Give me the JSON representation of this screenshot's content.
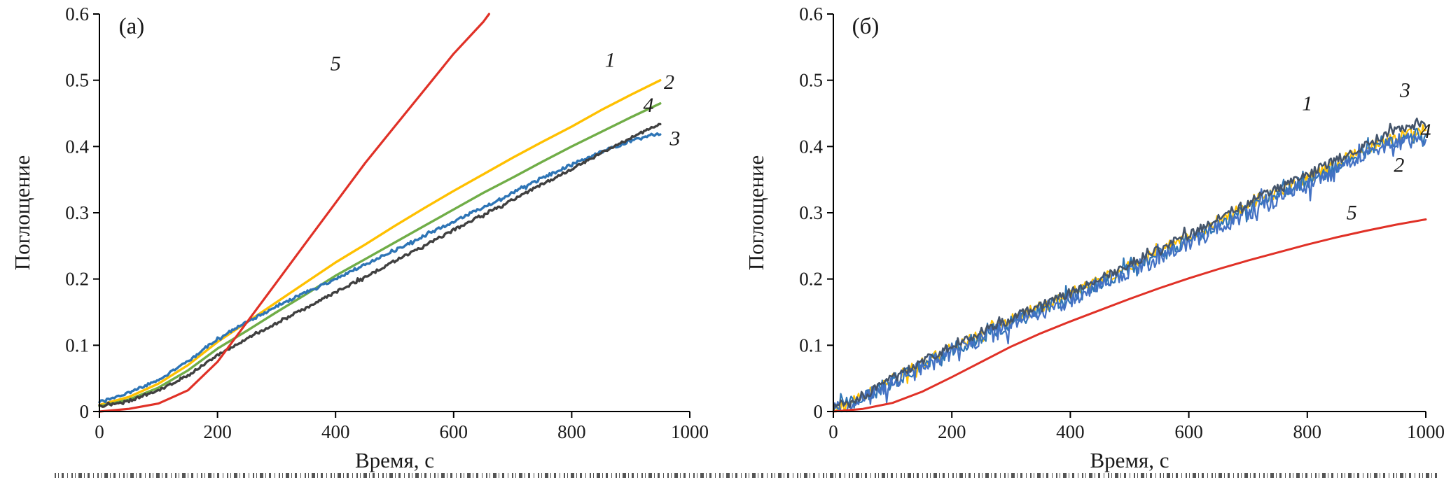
{
  "figure": {
    "background": "#ffffff",
    "axis_color": "#000000",
    "text_color": "#1a1a1a"
  },
  "chart_data": [
    {
      "type": "line",
      "panel_label": "(а)",
      "xlabel": "Время, с",
      "ylabel": "Поглощение",
      "xlim": [
        0,
        1000
      ],
      "ylim": [
        0,
        0.6
      ],
      "grid": false,
      "legend": "none (curves labeled inline with italic numbers)",
      "xticks": [
        0,
        200,
        400,
        600,
        800,
        1000
      ],
      "xtick_labels": [
        "0",
        "200",
        "400",
        "600",
        "800",
        "1000"
      ],
      "yticks": [
        0,
        0.1,
        0.2,
        0.3,
        0.4,
        0.5,
        0.6
      ],
      "ytick_labels": [
        "0",
        "0.1",
        "0.2",
        "0.3",
        "0.4",
        "0.5",
        "0.6"
      ],
      "series": [
        {
          "name": "1",
          "color": "#FFC000",
          "stroke_width": 3.4,
          "noise": 0,
          "x": [
            0,
            50,
            100,
            150,
            200,
            250,
            300,
            350,
            400,
            450,
            500,
            550,
            600,
            650,
            700,
            750,
            800,
            850,
            900,
            950
          ],
          "y": [
            0.01,
            0.022,
            0.042,
            0.07,
            0.105,
            0.135,
            0.165,
            0.195,
            0.225,
            0.252,
            0.28,
            0.307,
            0.333,
            0.358,
            0.383,
            0.407,
            0.43,
            0.455,
            0.478,
            0.5
          ]
        },
        {
          "name": "2",
          "color": "#70AD47",
          "stroke_width": 3.4,
          "noise": 0,
          "x": [
            0,
            50,
            100,
            150,
            200,
            250,
            300,
            350,
            400,
            450,
            500,
            550,
            600,
            650,
            700,
            750,
            800,
            850,
            900,
            950
          ],
          "y": [
            0.008,
            0.018,
            0.036,
            0.062,
            0.095,
            0.122,
            0.15,
            0.177,
            0.205,
            0.23,
            0.255,
            0.28,
            0.305,
            0.33,
            0.353,
            0.377,
            0.4,
            0.422,
            0.444,
            0.465
          ]
        },
        {
          "name": "3",
          "color": "#2E75B6",
          "stroke_width": 3.4,
          "noise": 0.002,
          "x": [
            0,
            50,
            100,
            150,
            200,
            250,
            300,
            350,
            400,
            450,
            500,
            550,
            600,
            650,
            700,
            750,
            800,
            850,
            900,
            950
          ],
          "y": [
            0.015,
            0.028,
            0.048,
            0.075,
            0.11,
            0.135,
            0.158,
            0.18,
            0.2,
            0.222,
            0.243,
            0.265,
            0.287,
            0.308,
            0.33,
            0.352,
            0.373,
            0.392,
            0.408,
            0.42
          ]
        },
        {
          "name": "4",
          "color": "#404040",
          "stroke_width": 3.4,
          "noise": 0.002,
          "x": [
            0,
            50,
            100,
            150,
            200,
            250,
            300,
            350,
            400,
            450,
            500,
            550,
            600,
            650,
            700,
            750,
            800,
            850,
            900,
            950
          ],
          "y": [
            0.008,
            0.016,
            0.032,
            0.055,
            0.085,
            0.11,
            0.133,
            0.156,
            0.18,
            0.203,
            0.227,
            0.25,
            0.274,
            0.297,
            0.32,
            0.343,
            0.366,
            0.39,
            0.413,
            0.435
          ]
        },
        {
          "name": "5",
          "color": "#E03127",
          "stroke_width": 3.2,
          "noise": 0,
          "x": [
            0,
            50,
            100,
            150,
            200,
            250,
            300,
            350,
            400,
            450,
            500,
            550,
            600,
            650,
            660
          ],
          "y": [
            0.0,
            0.004,
            0.012,
            0.032,
            0.075,
            0.135,
            0.195,
            0.255,
            0.315,
            0.375,
            0.43,
            0.485,
            0.54,
            0.588,
            0.6
          ]
        }
      ],
      "annotations": [
        {
          "text": "5",
          "x": 400,
          "y": 0.515
        },
        {
          "text": "1",
          "x": 865,
          "y": 0.52
        },
        {
          "text": "2",
          "x": 965,
          "y": 0.487
        },
        {
          "text": "4",
          "x": 930,
          "y": 0.452
        },
        {
          "text": "3",
          "x": 975,
          "y": 0.402
        }
      ]
    },
    {
      "type": "line",
      "panel_label": "(б)",
      "xlabel": "Время, с",
      "ylabel": "Поглощение",
      "xlim": [
        0,
        1000
      ],
      "ylim": [
        0,
        0.6
      ],
      "grid": false,
      "legend": "none (curves labeled inline with italic numbers)",
      "xticks": [
        0,
        200,
        400,
        600,
        800,
        1000
      ],
      "xtick_labels": [
        "0",
        "200",
        "400",
        "600",
        "800",
        "1000"
      ],
      "yticks": [
        0,
        0.1,
        0.2,
        0.3,
        0.4,
        0.5,
        0.6
      ],
      "ytick_labels": [
        "0",
        "0.1",
        "0.2",
        "0.3",
        "0.4",
        "0.5",
        "0.6"
      ],
      "series": [
        {
          "name": "1",
          "color": "#FFC000",
          "stroke_width": 2.2,
          "noise": 0.009,
          "x": [
            0,
            50,
            100,
            150,
            200,
            250,
            300,
            350,
            400,
            450,
            500,
            550,
            600,
            650,
            700,
            750,
            800,
            850,
            900,
            950,
            1000
          ],
          "y": [
            0.005,
            0.022,
            0.048,
            0.072,
            0.096,
            0.117,
            0.138,
            0.158,
            0.178,
            0.198,
            0.218,
            0.242,
            0.263,
            0.288,
            0.31,
            0.332,
            0.352,
            0.375,
            0.398,
            0.415,
            0.425
          ]
        },
        {
          "name": "4",
          "color": "#2E75B6",
          "stroke_width": 2.2,
          "noise": 0.011,
          "x": [
            0,
            50,
            100,
            150,
            200,
            250,
            300,
            350,
            400,
            450,
            500,
            550,
            600,
            650,
            700,
            750,
            800,
            850,
            900,
            950,
            1000
          ],
          "y": [
            0.005,
            0.02,
            0.045,
            0.07,
            0.093,
            0.113,
            0.134,
            0.154,
            0.174,
            0.194,
            0.214,
            0.237,
            0.259,
            0.283,
            0.306,
            0.328,
            0.348,
            0.37,
            0.393,
            0.41,
            0.42
          ]
        },
        {
          "name": "2",
          "color": "#4472C4",
          "stroke_width": 2.3,
          "noise": 0.013,
          "x": [
            0,
            50,
            100,
            150,
            200,
            250,
            300,
            350,
            400,
            450,
            500,
            550,
            600,
            650,
            700,
            750,
            800,
            850,
            900,
            950,
            1000
          ],
          "y": [
            0.004,
            0.018,
            0.042,
            0.066,
            0.09,
            0.11,
            0.13,
            0.15,
            0.17,
            0.19,
            0.21,
            0.232,
            0.254,
            0.278,
            0.3,
            0.322,
            0.342,
            0.365,
            0.388,
            0.405,
            0.415
          ]
        },
        {
          "name": "3",
          "color": "#44546A",
          "stroke_width": 2.6,
          "noise": 0.007,
          "x": [
            0,
            50,
            100,
            150,
            200,
            250,
            300,
            350,
            400,
            450,
            500,
            550,
            600,
            650,
            700,
            750,
            800,
            850,
            900,
            950,
            1000
          ],
          "y": [
            0.006,
            0.024,
            0.05,
            0.075,
            0.1,
            0.12,
            0.14,
            0.16,
            0.18,
            0.2,
            0.222,
            0.245,
            0.267,
            0.292,
            0.315,
            0.337,
            0.357,
            0.38,
            0.403,
            0.425,
            0.435
          ]
        },
        {
          "name": "5",
          "color": "#E03127",
          "stroke_width": 3.0,
          "noise": 0,
          "x": [
            0,
            50,
            100,
            150,
            200,
            250,
            300,
            350,
            400,
            450,
            500,
            550,
            600,
            650,
            700,
            750,
            800,
            850,
            900,
            950,
            1000
          ],
          "y": [
            0.0,
            0.004,
            0.013,
            0.03,
            0.052,
            0.075,
            0.098,
            0.118,
            0.136,
            0.153,
            0.17,
            0.186,
            0.201,
            0.215,
            0.228,
            0.24,
            0.252,
            0.263,
            0.273,
            0.282,
            0.29
          ]
        }
      ],
      "annotations": [
        {
          "text": "1",
          "x": 800,
          "y": 0.455
        },
        {
          "text": "3",
          "x": 965,
          "y": 0.475
        },
        {
          "text": "4",
          "x": 1000,
          "y": 0.413
        },
        {
          "text": "2",
          "x": 955,
          "y": 0.362
        },
        {
          "text": "5",
          "x": 875,
          "y": 0.29
        }
      ]
    }
  ]
}
